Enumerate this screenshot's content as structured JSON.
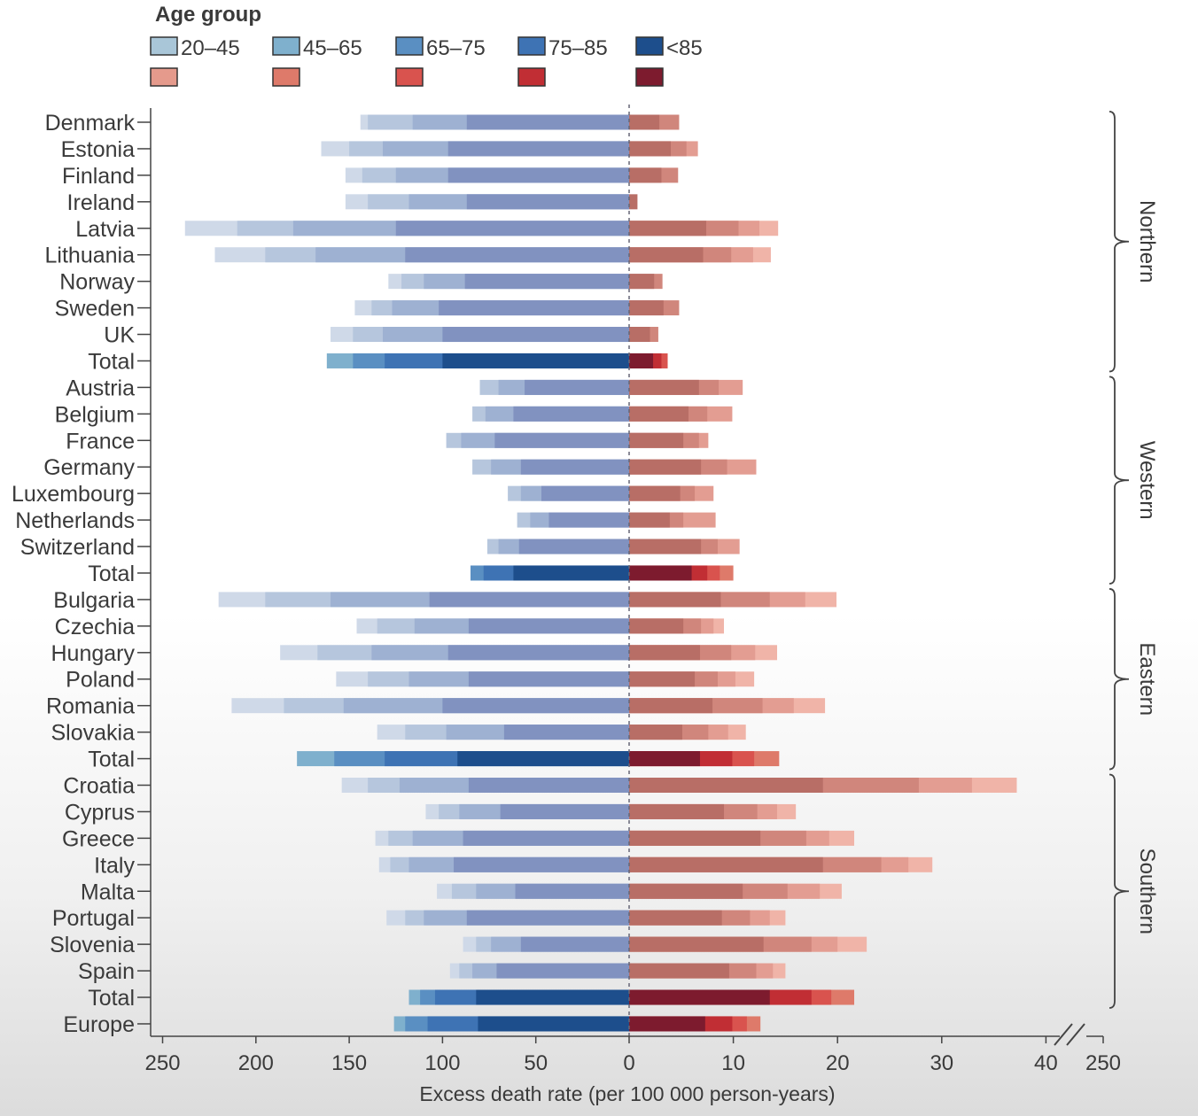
{
  "chart_data": {
    "type": "bar",
    "xlabel": "Excess death rate (per 100 000 person-years)",
    "legend": {
      "title": "Age group",
      "labels": [
        "20–45",
        "45–65",
        "65–75",
        "75–85",
        "<85"
      ],
      "placement": "top-left",
      "blue_colors": [
        "#a9c6d8",
        "#7fb0cd",
        "#5a8fc2",
        "#3e73b4",
        "#1d4e8c"
      ],
      "red_colors": [
        "#e59a8c",
        "#de7a6a",
        "#d9534e",
        "#c12e34",
        "#7d1b2e"
      ]
    },
    "left_axis": {
      "ticks": [
        "250",
        "200",
        "150",
        "100",
        "50",
        "0"
      ],
      "lim": [
        0,
        250
      ],
      "direction": "reversed"
    },
    "right_axis": {
      "ticks": [
        "0",
        "10",
        "20",
        "30",
        "40",
        "250"
      ],
      "lim": [
        0,
        44
      ],
      "broken": true
    },
    "groups": [
      {
        "name": "Northern",
        "countries": [
          "Denmark",
          "Estonia",
          "Finland",
          "Ireland",
          "Latvia",
          "Lithuania",
          "Norway",
          "Sweden",
          "UK",
          "Total"
        ]
      },
      {
        "name": "Western",
        "countries": [
          "Austria",
          "Belgium",
          "France",
          "Germany",
          "Luxembourg",
          "Netherlands",
          "Switzerland",
          "Total"
        ]
      },
      {
        "name": "Eastern",
        "countries": [
          "Bulgaria",
          "Czechia",
          "Hungary",
          "Poland",
          "Romania",
          "Slovakia",
          "Total"
        ]
      },
      {
        "name": "Southern",
        "countries": [
          "Croatia",
          "Cyprus",
          "Greece",
          "Italy",
          "Malta",
          "Portugal",
          "Slovenia",
          "Spain",
          "Total"
        ]
      },
      {
        "name": "",
        "countries": [
          "Europe"
        ]
      }
    ],
    "rows": [
      {
        "label": "Denmark",
        "blue": [
          144,
          140,
          116,
          87
        ],
        "red": [
          2.9,
          4.8
        ]
      },
      {
        "label": "Estonia",
        "blue": [
          165,
          150,
          132,
          97
        ],
        "red": [
          4,
          5.5,
          6.6
        ]
      },
      {
        "label": "Finland",
        "blue": [
          152,
          143,
          125,
          97
        ],
        "red": [
          3.1,
          4.7
        ]
      },
      {
        "label": "Ireland",
        "blue": [
          152,
          140,
          118,
          87
        ],
        "red": [
          0.8
        ]
      },
      {
        "label": "Latvia",
        "blue": [
          238,
          210,
          180,
          125
        ],
        "red": [
          7.4,
          10.5,
          12.5,
          14.3
        ]
      },
      {
        "label": "Lithuania",
        "blue": [
          222,
          195,
          168,
          120
        ],
        "red": [
          7.1,
          9.8,
          11.9,
          13.6
        ]
      },
      {
        "label": "Norway",
        "blue": [
          129,
          122,
          110,
          88
        ],
        "red": [
          2.4,
          3.2
        ]
      },
      {
        "label": "Sweden",
        "blue": [
          147,
          138,
          127,
          102
        ],
        "red": [
          3.3,
          4.8
        ]
      },
      {
        "label": "UK",
        "blue": [
          160,
          148,
          132,
          100
        ],
        "red": [
          2,
          2.8
        ]
      },
      {
        "label": "Total",
        "blue": [
          162,
          148,
          131,
          100
        ],
        "red": [
          2.3,
          3.1,
          3.7
        ]
      },
      {
        "label": "Austria",
        "blue": [
          80,
          70,
          56
        ],
        "red": [
          6.7,
          8.6,
          10.9
        ]
      },
      {
        "label": "Belgium",
        "blue": [
          84,
          77,
          62
        ],
        "red": [
          5.7,
          7.5,
          9.9
        ]
      },
      {
        "label": "France",
        "blue": [
          98,
          90,
          72
        ],
        "red": [
          5.2,
          6.7,
          7.6
        ]
      },
      {
        "label": "Germany",
        "blue": [
          84,
          74,
          58
        ],
        "red": [
          6.9,
          9.4,
          12.2
        ]
      },
      {
        "label": "Luxembourg",
        "blue": [
          65,
          58,
          47
        ],
        "red": [
          4.9,
          6.3,
          8.1
        ]
      },
      {
        "label": "Netherlands",
        "blue": [
          60,
          53,
          43
        ],
        "red": [
          3.9,
          5.2,
          8.3
        ]
      },
      {
        "label": "Switzerland",
        "blue": [
          76,
          70,
          59
        ],
        "red": [
          6.9,
          8.5,
          10.6
        ]
      },
      {
        "label": "Total",
        "blue": [
          85,
          78,
          62
        ],
        "red": [
          6,
          7.5,
          8.7,
          10
        ]
      },
      {
        "label": "Bulgaria",
        "blue": [
          220,
          195,
          160,
          107
        ],
        "red": [
          8.8,
          13.5,
          16.9,
          19.9
        ]
      },
      {
        "label": "Czechia",
        "blue": [
          146,
          135,
          115,
          86
        ],
        "red": [
          5.2,
          6.9,
          8.1,
          9.1
        ]
      },
      {
        "label": "Hungary",
        "blue": [
          187,
          167,
          138,
          97
        ],
        "red": [
          6.8,
          9.8,
          12.1,
          14.2
        ]
      },
      {
        "label": "Poland",
        "blue": [
          157,
          140,
          118,
          86
        ],
        "red": [
          6.3,
          8.5,
          10.2,
          12
        ]
      },
      {
        "label": "Romania",
        "blue": [
          213,
          185,
          153,
          100
        ],
        "red": [
          8,
          12.8,
          15.8,
          18.8
        ]
      },
      {
        "label": "Slovakia",
        "blue": [
          135,
          120,
          98,
          67
        ],
        "red": [
          5.1,
          7.6,
          9.5,
          11.2
        ]
      },
      {
        "label": "Total",
        "blue": [
          178,
          158,
          131,
          92
        ],
        "red": [
          6.8,
          9.9,
          12,
          14.4
        ]
      },
      {
        "label": "Croatia",
        "blue": [
          154,
          140,
          123,
          86
        ],
        "red": [
          18.6,
          27.8,
          32.9,
          37.2
        ]
      },
      {
        "label": "Cyprus",
        "blue": [
          109,
          102,
          91,
          69
        ],
        "red": [
          9.1,
          12.3,
          14.2,
          16
        ]
      },
      {
        "label": "Greece",
        "blue": [
          136,
          129,
          116,
          89
        ],
        "red": [
          12.6,
          17,
          19.2,
          21.6
        ]
      },
      {
        "label": "Italy",
        "blue": [
          134,
          128,
          118,
          94
        ],
        "red": [
          18.6,
          24.2,
          26.8,
          29.1
        ]
      },
      {
        "label": "Malta",
        "blue": [
          103,
          95,
          82,
          61
        ],
        "red": [
          10.9,
          15.2,
          18.3,
          20.4
        ]
      },
      {
        "label": "Portugal",
        "blue": [
          130,
          120,
          110,
          87
        ],
        "red": [
          8.9,
          11.6,
          13.5,
          15
        ]
      },
      {
        "label": "Slovenia",
        "blue": [
          89,
          82,
          74,
          58
        ],
        "red": [
          12.9,
          17.5,
          20,
          22.8
        ]
      },
      {
        "label": "Spain",
        "blue": [
          96,
          91,
          84,
          71
        ],
        "red": [
          9.6,
          12.2,
          13.8,
          15
        ]
      },
      {
        "label": "Total",
        "blue": [
          118,
          112,
          104,
          82
        ],
        "red": [
          13.5,
          17.5,
          19.4,
          21.6
        ]
      },
      {
        "label": "Europe",
        "blue": [
          126,
          120,
          108,
          81
        ],
        "red": [
          7.3,
          9.9,
          11.3,
          12.6
        ]
      }
    ]
  }
}
